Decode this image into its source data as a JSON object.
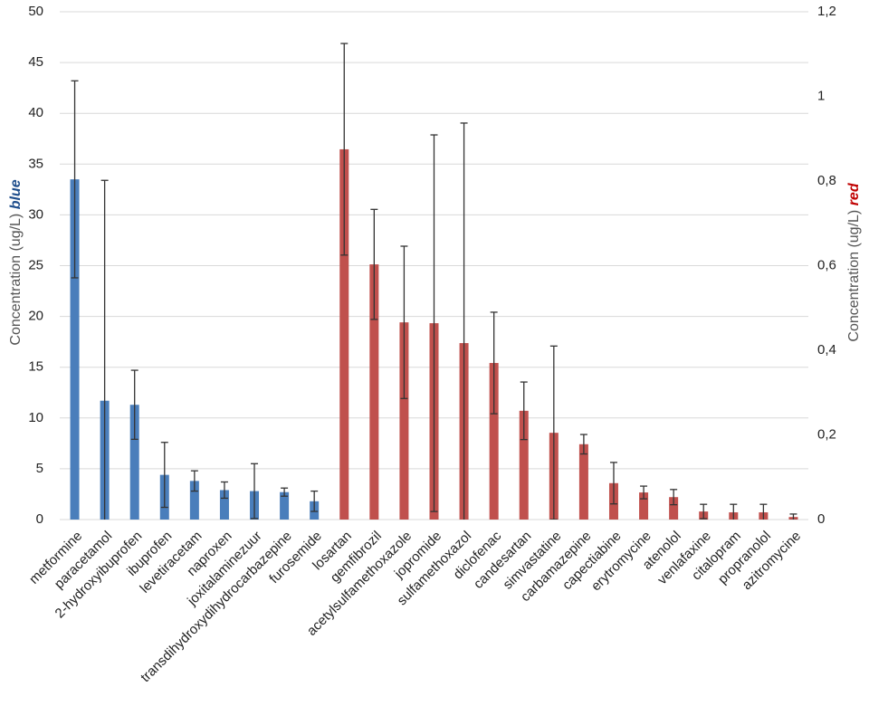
{
  "chart_data": {
    "type": "bar",
    "categories": [
      "metformine",
      "paracetamol",
      "2-hydroxyibuprofen",
      "ibuprofen",
      "levetiracetam",
      "naproxen",
      "joxitalaminezuur",
      "transdihydroxydihydrocarbazepine",
      "furosemide",
      "losartan",
      "gemfibrozil",
      "acetylsulfamethoxazole",
      "jopromide",
      "sulfamethoxazol",
      "diclofenac",
      "candesartan",
      "simvastatine",
      "carbamazepine",
      "capectiabine",
      "erytromycine",
      "atenolol",
      "venlafaxine",
      "citalopram",
      "propranolol",
      "azitromycine"
    ],
    "series": [
      {
        "name": "blue",
        "color": "#4a7ebb",
        "axis": "y",
        "values": [
          33.5,
          11.7,
          11.3,
          4.4,
          3.8,
          2.9,
          2.8,
          2.7,
          1.8,
          null,
          null,
          null,
          null,
          null,
          null,
          null,
          null,
          null,
          null,
          null,
          null,
          null,
          null,
          null,
          null
        ],
        "errors": [
          9.7,
          21.7,
          3.4,
          3.2,
          1.0,
          0.8,
          2.7,
          0.4,
          1.0,
          null,
          null,
          null,
          null,
          null,
          null,
          null,
          null,
          null,
          null,
          null,
          null,
          null,
          null,
          null,
          null
        ]
      },
      {
        "name": "red",
        "color": "#c0504d",
        "axis": "y2",
        "values": [
          null,
          null,
          null,
          null,
          null,
          null,
          null,
          null,
          null,
          0.875,
          0.603,
          0.466,
          0.464,
          0.417,
          0.37,
          0.257,
          0.205,
          0.178,
          0.086,
          0.064,
          0.053,
          0.019,
          0.017,
          0.017,
          0.006
        ],
        "errors": [
          null,
          null,
          null,
          null,
          null,
          null,
          null,
          null,
          null,
          0.25,
          0.13,
          0.18,
          0.445,
          0.52,
          0.12,
          0.068,
          0.205,
          0.023,
          0.049,
          0.015,
          0.018,
          0.017,
          0.019,
          0.019,
          0.007
        ]
      }
    ],
    "ylabel": "Concentration (ug/L)",
    "ylabel_emphasis": "blue",
    "y2label": "Concentration (ug/L)",
    "y2label_emphasis": "red",
    "ylim": [
      0,
      50
    ],
    "yticks": [
      0,
      5,
      10,
      15,
      20,
      25,
      30,
      35,
      40,
      45,
      50
    ],
    "y2lim": [
      0,
      1.2
    ],
    "y2ticks": [
      0,
      {
        "value": 0.2,
        "label": "0,2"
      },
      {
        "value": 0.4,
        "label": "0,4"
      },
      {
        "value": 0.6,
        "label": "0,6"
      },
      {
        "value": 0.8,
        "label": "0,8"
      },
      1,
      {
        "value": 1.2,
        "label": "1,2"
      }
    ],
    "grid": true
  }
}
